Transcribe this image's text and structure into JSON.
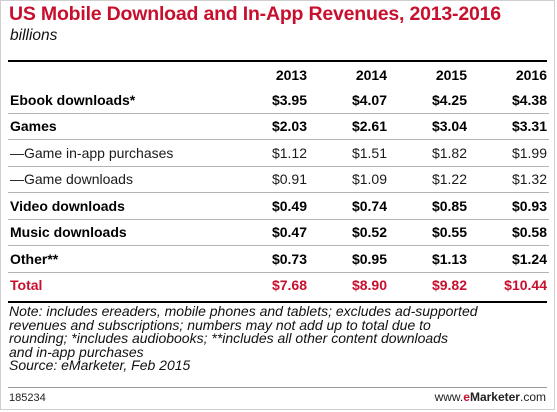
{
  "chart_data": {
    "type": "table",
    "title": "US Mobile Download and In-App Revenues, 2013-2016",
    "subtitle": "billions",
    "columns": [
      "2013",
      "2014",
      "2015",
      "2016"
    ],
    "rows": [
      {
        "label": "Ebook downloads*",
        "values": [
          "$3.95",
          "$4.07",
          "$4.25",
          "$4.38"
        ]
      },
      {
        "label": "Games",
        "values": [
          "$2.03",
          "$2.61",
          "$3.04",
          "$3.31"
        ]
      },
      {
        "label": "—Game in-app purchases",
        "values": [
          "$1.12",
          "$1.51",
          "$1.82",
          "$1.99"
        ]
      },
      {
        "label": "—Game downloads",
        "values": [
          "$0.91",
          "$1.09",
          "$1.22",
          "$1.32"
        ]
      },
      {
        "label": "Video downloads",
        "values": [
          "$0.49",
          "$0.74",
          "$0.85",
          "$0.93"
        ]
      },
      {
        "label": "Music downloads",
        "values": [
          "$0.47",
          "$0.52",
          "$0.55",
          "$0.58"
        ]
      },
      {
        "label": "Other**",
        "values": [
          "$0.73",
          "$0.95",
          "$1.13",
          "$1.24"
        ]
      },
      {
        "label": "Total",
        "values": [
          "$7.68",
          "$8.90",
          "$9.82",
          "$10.44"
        ]
      }
    ],
    "note_lines": [
      "Note: includes ereaders, mobile phones and tablets; excludes ad-supported",
      "revenues and subscriptions; numbers may not add up to total due to",
      "rounding; *includes audiobooks; **includes all other content downloads",
      "and in-app purchases",
      "Source: eMarketer, Feb 2015"
    ],
    "chart_id": "185234",
    "brand": {
      "prefix": "www.",
      "em": "e",
      "name": "Marketer",
      "suffix": ".com"
    },
    "colors": {
      "accent": "#c8102e",
      "text": "#000000",
      "rule": "#b3b3b3"
    }
  }
}
